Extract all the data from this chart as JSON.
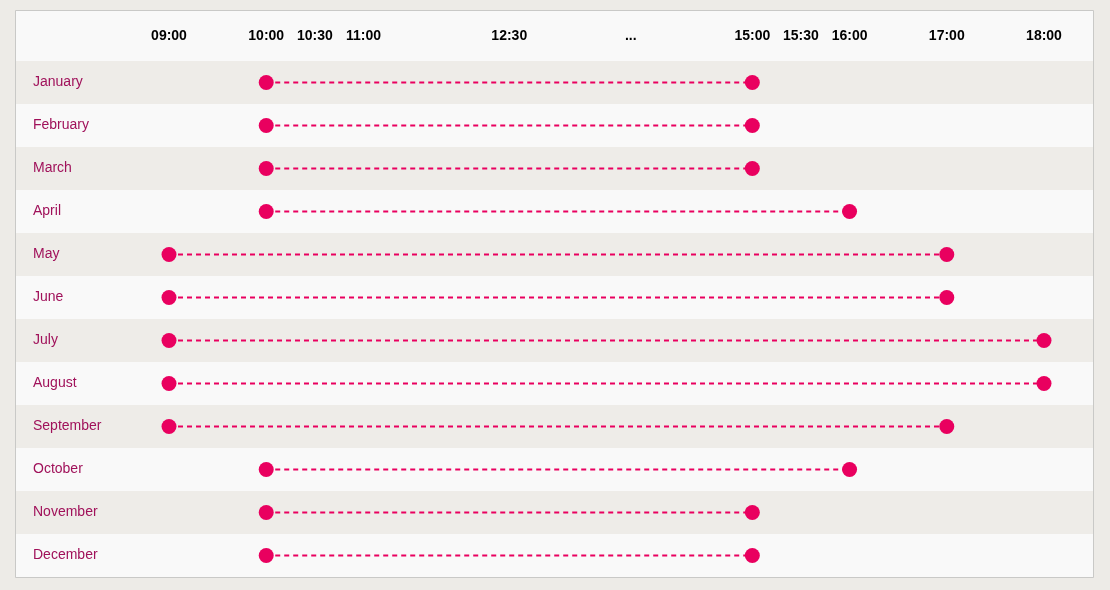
{
  "chart_data": {
    "type": "scatter",
    "orientation": "horizontal",
    "categories": [
      "January",
      "February",
      "March",
      "April",
      "May",
      "June",
      "July",
      "August",
      "September",
      "October",
      "November",
      "December"
    ],
    "series": [
      {
        "color": "#e9005f",
        "values": [
          10,
          10,
          10,
          10,
          9,
          9,
          9,
          9,
          9,
          10,
          10,
          10
        ]
      },
      {
        "color": "#e9005f",
        "values": [
          15,
          15,
          15,
          16,
          17,
          17,
          18,
          18,
          17,
          16,
          15,
          15
        ]
      }
    ],
    "xlim": [
      9,
      18
    ],
    "xticks": [
      {
        "value": 9,
        "label": "09:00"
      },
      {
        "value": 10,
        "label": "10:00"
      },
      {
        "value": 10.5,
        "label": "10:30"
      },
      {
        "value": 11,
        "label": "11:00"
      },
      {
        "value": 12.5,
        "label": "12:30"
      },
      {
        "value": 15,
        "label": "15:00"
      },
      {
        "value": 15.5,
        "label": "15:30"
      },
      {
        "value": 16,
        "label": "16:00"
      },
      {
        "value": 17,
        "label": "17:00"
      },
      {
        "value": 18,
        "label": "18:00"
      }
    ],
    "annotations": [
      "..."
    ],
    "grid": "y",
    "marker": "circle",
    "line_style": "dashed"
  }
}
